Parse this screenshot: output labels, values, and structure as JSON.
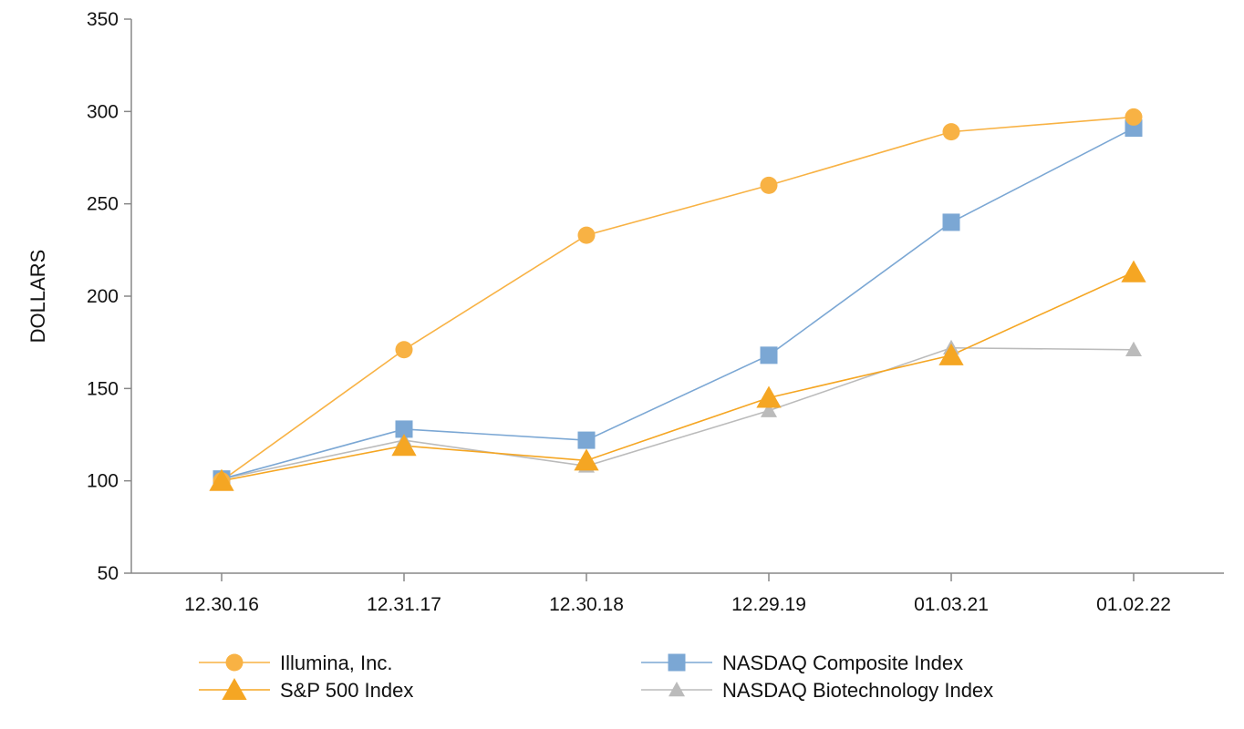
{
  "chart_data": {
    "type": "line",
    "title": "",
    "xlabel": "",
    "ylabel": "DOLLARS",
    "ylim": [
      50,
      350
    ],
    "yticks": [
      50,
      100,
      150,
      200,
      250,
      300,
      350
    ],
    "ytick_labels": [
      "50",
      "100",
      "150",
      "200",
      "250",
      "300",
      "350"
    ],
    "categories": [
      "12.30.16",
      "12.31.17",
      "12.30.18",
      "12.29.19",
      "01.03.21",
      "01.02.22"
    ],
    "grid": false,
    "legend_position": "bottom",
    "series": [
      {
        "name": "Illumina, Inc.",
        "marker": "circle",
        "color": "#F8B244",
        "values": [
          100,
          171,
          233,
          260,
          289,
          297
        ]
      },
      {
        "name": "NASDAQ Composite Index",
        "marker": "square",
        "color": "#7BA7D4",
        "values": [
          101,
          128,
          122,
          168,
          240,
          291
        ]
      },
      {
        "name": "S&P 500 Index",
        "marker": "triangle",
        "color": "#F5A623",
        "values": [
          100,
          119,
          111,
          145,
          168,
          213
        ]
      },
      {
        "name": "NASDAQ Biotechnology Index",
        "marker": "triangle-small",
        "color": "#BBBBBB",
        "values": [
          101,
          122,
          108,
          138,
          172,
          171
        ]
      }
    ],
    "legend_order": [
      0,
      1,
      2,
      3
    ]
  }
}
